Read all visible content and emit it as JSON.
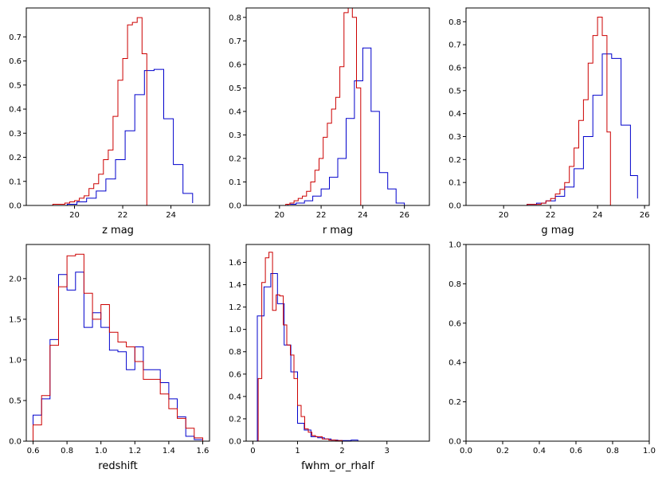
{
  "chart_data": [
    {
      "type": "histogram",
      "xlabel": "z mag",
      "xlim": [
        18.0,
        25.6
      ],
      "ylim": [
        0,
        0.82
      ],
      "xticks": [
        20,
        22,
        24
      ],
      "yticks": [
        0.0,
        0.1,
        0.2,
        0.3,
        0.4,
        0.5,
        0.6,
        0.7
      ],
      "xtick_labels": [
        "20",
        "22",
        "24"
      ],
      "ytick_labels": [
        "0.0",
        "0.1",
        "0.2",
        "0.3",
        "0.4",
        "0.5",
        "0.6",
        "0.7"
      ],
      "series": [
        {
          "color": "#0000cc",
          "edges": [
            19.3,
            19.7,
            20.1,
            20.5,
            20.9,
            21.3,
            21.7,
            22.1,
            22.5,
            22.9,
            23.3,
            23.7,
            24.1,
            24.5,
            24.9
          ],
          "values": [
            0.0,
            0.005,
            0.015,
            0.03,
            0.06,
            0.11,
            0.19,
            0.31,
            0.46,
            0.56,
            0.565,
            0.36,
            0.17,
            0.05,
            0.01
          ]
        },
        {
          "color": "#cc0000",
          "edges": [
            19.1,
            19.4,
            19.6,
            19.8,
            20.0,
            20.2,
            20.4,
            20.6,
            20.8,
            21.0,
            21.2,
            21.4,
            21.6,
            21.8,
            22.0,
            22.2,
            22.4,
            22.6,
            22.8,
            23.0
          ],
          "values": [
            0.005,
            0.005,
            0.01,
            0.015,
            0.02,
            0.03,
            0.04,
            0.07,
            0.09,
            0.13,
            0.19,
            0.23,
            0.37,
            0.52,
            0.61,
            0.75,
            0.76,
            0.78,
            0.63
          ]
        }
      ]
    },
    {
      "type": "histogram",
      "xlabel": "r mag",
      "xlim": [
        18.4,
        27.2
      ],
      "ylim": [
        0,
        0.84
      ],
      "xticks": [
        20,
        22,
        24,
        26
      ],
      "yticks": [
        0.0,
        0.1,
        0.2,
        0.3,
        0.4,
        0.5,
        0.6,
        0.7,
        0.8
      ],
      "xtick_labels": [
        "20",
        "22",
        "24",
        "26"
      ],
      "ytick_labels": [
        "0.0",
        "0.1",
        "0.2",
        "0.3",
        "0.4",
        "0.5",
        "0.6",
        "0.7",
        "0.8"
      ],
      "series": [
        {
          "color": "#0000cc",
          "edges": [
            20.4,
            20.8,
            21.2,
            21.6,
            22.0,
            22.4,
            22.8,
            23.2,
            23.6,
            24.0,
            24.4,
            24.8,
            25.2,
            25.6,
            26.0
          ],
          "values": [
            0.005,
            0.01,
            0.02,
            0.04,
            0.07,
            0.12,
            0.2,
            0.37,
            0.53,
            0.67,
            0.4,
            0.14,
            0.07,
            0.01
          ]
        },
        {
          "color": "#cc0000",
          "edges": [
            20.3,
            20.5,
            20.7,
            20.9,
            21.1,
            21.3,
            21.5,
            21.7,
            21.9,
            22.1,
            22.3,
            22.5,
            22.7,
            22.9,
            23.1,
            23.3,
            23.5,
            23.7,
            23.9
          ],
          "values": [
            0.005,
            0.01,
            0.02,
            0.03,
            0.04,
            0.06,
            0.1,
            0.15,
            0.2,
            0.29,
            0.35,
            0.41,
            0.46,
            0.59,
            0.82,
            0.84,
            0.8,
            0.5
          ]
        }
      ]
    },
    {
      "type": "histogram",
      "xlabel": "g mag",
      "xlim": [
        18.4,
        26.2
      ],
      "ylim": [
        0,
        0.86
      ],
      "xticks": [
        20,
        22,
        24,
        26
      ],
      "yticks": [
        0.0,
        0.1,
        0.2,
        0.3,
        0.4,
        0.5,
        0.6,
        0.7,
        0.8
      ],
      "xtick_labels": [
        "20",
        "22",
        "24",
        "26"
      ],
      "ytick_labels": [
        "0.0",
        "0.1",
        "0.2",
        "0.3",
        "0.4",
        "0.5",
        "0.6",
        "0.7",
        "0.8"
      ],
      "series": [
        {
          "color": "#0000cc",
          "edges": [
            21.0,
            21.4,
            21.8,
            22.2,
            22.6,
            23.0,
            23.4,
            23.8,
            24.2,
            24.6,
            25.0,
            25.4,
            25.7
          ],
          "values": [
            0.005,
            0.01,
            0.02,
            0.04,
            0.08,
            0.16,
            0.3,
            0.48,
            0.66,
            0.64,
            0.35,
            0.13,
            0.03
          ]
        },
        {
          "color": "#cc0000",
          "edges": [
            21.0,
            21.6,
            21.8,
            22.0,
            22.2,
            22.4,
            22.6,
            22.8,
            23.0,
            23.2,
            23.4,
            23.6,
            23.8,
            24.0,
            24.2,
            24.4,
            24.55
          ],
          "values": [
            0.005,
            0.01,
            0.02,
            0.03,
            0.05,
            0.07,
            0.1,
            0.17,
            0.25,
            0.37,
            0.46,
            0.62,
            0.74,
            0.82,
            0.74,
            0.32
          ]
        }
      ]
    },
    {
      "type": "histogram",
      "xlabel": "redshift",
      "xlim": [
        0.56,
        1.64
      ],
      "ylim": [
        0,
        2.42
      ],
      "xticks": [
        0.6,
        0.8,
        1.0,
        1.2,
        1.4,
        1.6
      ],
      "yticks": [
        0.0,
        0.5,
        1.0,
        1.5,
        2.0
      ],
      "xtick_labels": [
        "0.6",
        "0.8",
        "1.0",
        "1.2",
        "1.4",
        "1.6"
      ],
      "ytick_labels": [
        "0.0",
        "0.5",
        "1.0",
        "1.5",
        "2.0"
      ],
      "series": [
        {
          "color": "#0000cc",
          "edges": [
            0.6,
            0.65,
            0.7,
            0.75,
            0.8,
            0.85,
            0.9,
            0.95,
            1.0,
            1.05,
            1.1,
            1.15,
            1.2,
            1.25,
            1.3,
            1.35,
            1.4,
            1.45,
            1.5,
            1.55,
            1.6
          ],
          "values": [
            0.32,
            0.52,
            1.25,
            2.05,
            1.86,
            2.08,
            1.4,
            1.58,
            1.4,
            1.12,
            1.1,
            0.88,
            1.16,
            0.88,
            0.88,
            0.72,
            0.52,
            0.3,
            0.06,
            0.02
          ]
        },
        {
          "color": "#cc0000",
          "edges": [
            0.6,
            0.65,
            0.7,
            0.75,
            0.8,
            0.85,
            0.9,
            0.95,
            1.0,
            1.05,
            1.1,
            1.15,
            1.2,
            1.25,
            1.3,
            1.35,
            1.4,
            1.45,
            1.5,
            1.55,
            1.6
          ],
          "values": [
            0.2,
            0.56,
            1.18,
            1.9,
            2.28,
            2.3,
            1.82,
            1.5,
            1.68,
            1.34,
            1.22,
            1.16,
            0.98,
            0.76,
            0.76,
            0.58,
            0.4,
            0.28,
            0.16,
            0.04
          ]
        }
      ]
    },
    {
      "type": "histogram",
      "xlabel": "fwhm_or_rhalf",
      "xlim": [
        -0.15,
        3.95
      ],
      "ylim": [
        0,
        1.76
      ],
      "xticks": [
        0,
        1,
        2,
        3
      ],
      "yticks": [
        0.0,
        0.2,
        0.4,
        0.6,
        0.8,
        1.0,
        1.2,
        1.4,
        1.6
      ],
      "xtick_labels": [
        "0",
        "1",
        "2",
        "3"
      ],
      "ytick_labels": [
        "0.0",
        "0.2",
        "0.4",
        "0.6",
        "0.8",
        "1.0",
        "1.2",
        "1.4",
        "1.6"
      ],
      "series": [
        {
          "color": "#0000cc",
          "edges": [
            0.1,
            0.25,
            0.4,
            0.55,
            0.7,
            0.85,
            1.0,
            1.15,
            1.3,
            1.45,
            1.6,
            1.75,
            1.9,
            2.05,
            2.2,
            2.35,
            2.5
          ],
          "values": [
            1.12,
            1.38,
            1.5,
            1.23,
            0.86,
            0.62,
            0.16,
            0.1,
            0.04,
            0.03,
            0.02,
            0.01,
            0.005,
            0.005,
            0.01,
            0.0
          ]
        },
        {
          "color": "#cc0000",
          "edges": [
            0.12,
            0.2,
            0.28,
            0.36,
            0.44,
            0.52,
            0.6,
            0.68,
            0.76,
            0.84,
            0.92,
            1.0,
            1.08,
            1.16,
            1.24,
            1.32,
            1.4,
            1.55,
            1.7,
            1.85,
            2.0
          ],
          "values": [
            0.56,
            1.42,
            1.64,
            1.69,
            1.17,
            1.31,
            1.3,
            1.04,
            0.86,
            0.77,
            0.56,
            0.32,
            0.22,
            0.11,
            0.08,
            0.05,
            0.04,
            0.02,
            0.01,
            0.005
          ]
        }
      ]
    },
    {
      "type": "empty",
      "xlabel": "",
      "xlim": [
        0.0,
        1.0
      ],
      "ylim": [
        0.0,
        1.0
      ],
      "xticks": [
        0.0,
        0.2,
        0.4,
        0.6,
        0.8,
        1.0
      ],
      "yticks": [
        0.0,
        0.2,
        0.4,
        0.6,
        0.8,
        1.0
      ],
      "xtick_labels": [
        "0.0",
        "0.2",
        "0.4",
        "0.6",
        "0.8",
        "1.0"
      ],
      "ytick_labels": [
        "0.0",
        "0.2",
        "0.4",
        "0.6",
        "0.8",
        "1.0"
      ],
      "series": []
    }
  ]
}
